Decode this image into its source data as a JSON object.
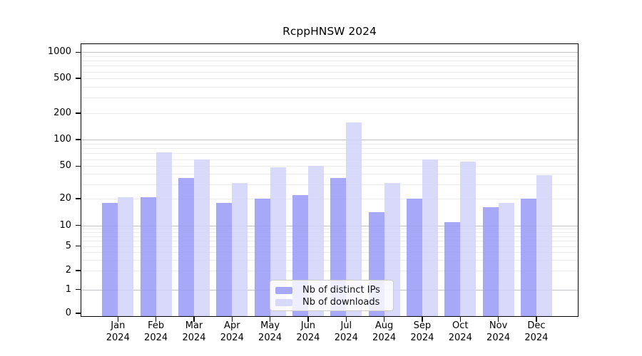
{
  "title": "RcppHNSW 2024",
  "chart_data": {
    "type": "bar",
    "title": "RcppHNSW 2024",
    "categories": [
      "Jan",
      "Feb",
      "Mar",
      "Apr",
      "May",
      "Jun",
      "Jul",
      "Aug",
      "Sep",
      "Oct",
      "Nov",
      "Dec"
    ],
    "year": "2024",
    "series": [
      {
        "name": "Nb of distinct IPs",
        "color": "rgba(153,153,248,0.85)",
        "values": [
          18,
          21,
          36,
          18,
          20,
          22,
          36,
          14,
          20,
          11,
          16,
          20
        ]
      },
      {
        "name": "Nb of downloads",
        "color": "rgba(210,210,250,0.85)",
        "values": [
          21,
          71,
          60,
          31,
          48,
          50,
          158,
          31,
          60,
          56,
          18,
          39
        ]
      }
    ],
    "yscale": "symlog-like",
    "yticks": [
      1000,
      500,
      200,
      100,
      50,
      20,
      10,
      5,
      2,
      1,
      0
    ],
    "minor_gridlines": [
      2,
      3,
      4,
      5,
      6,
      7,
      8,
      9,
      20,
      30,
      40,
      50,
      60,
      70,
      80,
      90,
      200,
      300,
      400,
      500,
      600,
      700,
      800,
      900
    ],
    "major_gridlines": [
      1,
      10,
      100,
      1000
    ],
    "ylim": [
      0,
      1270
    ],
    "grid": true,
    "legend_position": "lower center",
    "xlabel": "",
    "ylabel": ""
  },
  "colors": {
    "bar_ips": "rgba(153,153,248,0.85)",
    "bar_downloads": "rgba(210,210,250,0.85)",
    "grid_minor": "#ebebeb",
    "grid_major": "#c2c2c6",
    "spine": "#000000",
    "legend_border": "#cccccc"
  }
}
